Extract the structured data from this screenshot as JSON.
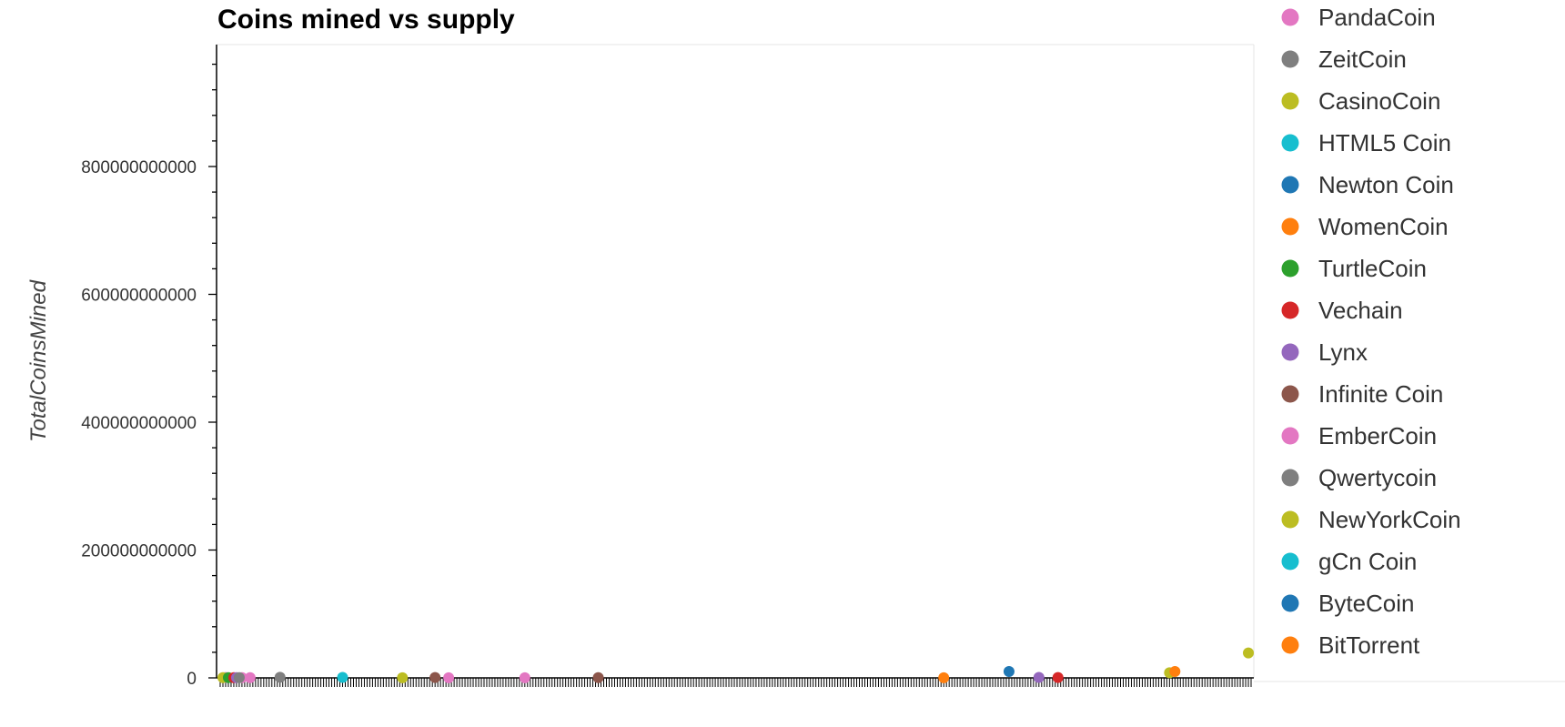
{
  "chart_data": {
    "type": "scatter",
    "title": "Coins mined vs supply",
    "xlabel": "",
    "ylabel": "TotalCoinsMined",
    "ylim": [
      0,
      1000000000000
    ],
    "y_ticks": [
      0,
      200000000000,
      400000000000,
      600000000000,
      800000000000
    ],
    "y_tick_labels": [
      "0",
      "200000000000",
      "400000000000",
      "600000000000",
      "800000000000"
    ],
    "grid": false,
    "legend_position": "right",
    "x_category_count": 380,
    "series": [
      {
        "name": "PandaCoin",
        "color": "#e377c2",
        "x": [
          2,
          11
        ],
        "y": [
          500000000,
          400000000
        ]
      },
      {
        "name": "ZeitCoin",
        "color": "#7f7f7f",
        "x": [
          22
        ],
        "y": [
          900000000
        ]
      },
      {
        "name": "CasinoCoin",
        "color": "#bcbd22",
        "x": [
          1,
          67
        ],
        "y": [
          300000000,
          200000000
        ]
      },
      {
        "name": "HTML5 Coin",
        "color": "#17becf",
        "x": [
          45
        ],
        "y": [
          700000000
        ]
      },
      {
        "name": "Newton Coin",
        "color": "#1f77b4",
        "x": [
          290
        ],
        "y": [
          10000000000
        ]
      },
      {
        "name": "WomenCoin",
        "color": "#ff7f0e",
        "x": [
          266
        ],
        "y": [
          200000000
        ]
      },
      {
        "name": "TurtleCoin",
        "color": "#2ca02c",
        "x": [
          3
        ],
        "y": [
          400000000
        ]
      },
      {
        "name": "Vechain",
        "color": "#d62728",
        "x": [
          5,
          308
        ],
        "y": [
          300000000,
          500000000
        ]
      },
      {
        "name": "Lynx",
        "color": "#9467bd",
        "x": [
          6,
          301
        ],
        "y": [
          300000000,
          700000000
        ]
      },
      {
        "name": "Infinite Coin",
        "color": "#8c564b",
        "x": [
          79,
          139
        ],
        "y": [
          500000000,
          300000000
        ]
      },
      {
        "name": "EmberCoin",
        "color": "#e377c2",
        "x": [
          8,
          84,
          112
        ],
        "y": [
          300000000,
          200000000,
          200000000
        ]
      },
      {
        "name": "Qwertycoin",
        "color": "#7f7f7f",
        "x": [
          7
        ],
        "y": [
          300000000
        ]
      },
      {
        "name": "NewYorkCoin",
        "color": "#bcbd22",
        "x": [
          349,
          378
        ],
        "y": [
          8000000000,
          39000000000
        ]
      },
      {
        "name": "gCn Coin",
        "color": "#17becf",
        "x": [],
        "y": []
      },
      {
        "name": "ByteCoin",
        "color": "#1f77b4",
        "x": [],
        "y": []
      },
      {
        "name": "BitTorrent",
        "color": "#ff7f0e",
        "x": [
          351
        ],
        "y": [
          10000000000
        ]
      }
    ]
  }
}
